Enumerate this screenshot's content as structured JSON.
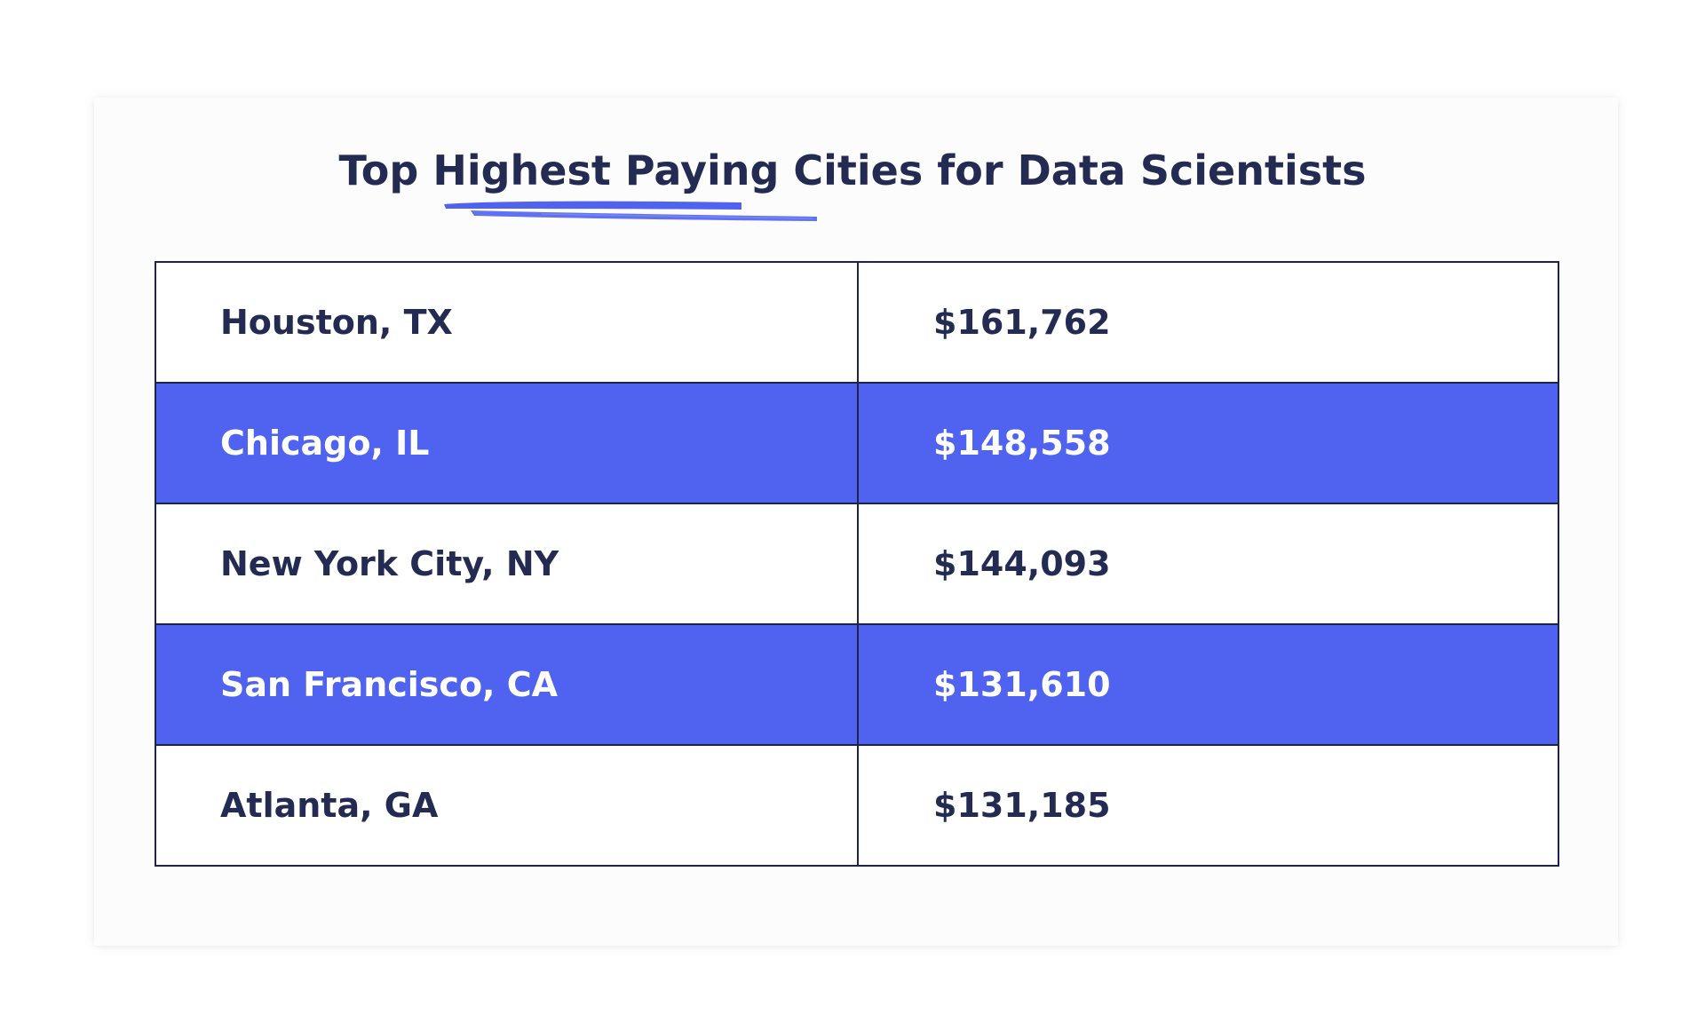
{
  "colors": {
    "title": "#232b52",
    "border": "#1e2347",
    "highlight": "#4f62f0",
    "highlight_text": "#ffffff",
    "text": "#232b52",
    "underline": "#4f62f0"
  },
  "chart_data": {
    "type": "table",
    "title": "Top Highest Paying Cities for Data Scientists",
    "columns": [
      "",
      ""
    ],
    "rows": [
      {
        "city": "Houston, TX",
        "salary": "$161,762",
        "highlighted": false
      },
      {
        "city": "Chicago, IL",
        "salary": "$148,558",
        "highlighted": true
      },
      {
        "city": "New York City, NY",
        "salary": "$144,093",
        "highlighted": false
      },
      {
        "city": "San Francisco, CA",
        "salary": "$131,610",
        "highlighted": true
      },
      {
        "city": "Atlanta, GA",
        "salary": "$131,185",
        "highlighted": false
      }
    ],
    "values": [
      161762,
      148558,
      144093,
      131610,
      131185
    ]
  }
}
